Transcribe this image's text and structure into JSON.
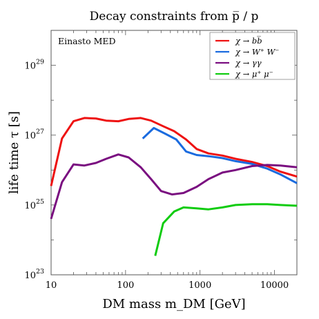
{
  "chart_data": {
    "type": "line",
    "title": "Decay constraints from p̅ / p",
    "xlabel": "DM mass m_DM [GeV]",
    "ylabel": "life time τ [s]",
    "annotation": "Einasto MED",
    "x_scale": "log",
    "y_scale": "log",
    "xlim": [
      10,
      20000
    ],
    "ylim": [
      1e+23,
      1e+30
    ],
    "x_ticks": [
      {
        "value": 10,
        "label": "10"
      },
      {
        "value": 100,
        "label": "100"
      },
      {
        "value": 1000,
        "label": "1000"
      },
      {
        "value": 10000,
        "label": "10000"
      }
    ],
    "y_ticks": [
      {
        "value": 1e+23,
        "mant": "10",
        "exp": "23"
      },
      {
        "value": 1e+25,
        "mant": "10",
        "exp": "25"
      },
      {
        "value": 1e+27,
        "mant": "10",
        "exp": "27"
      },
      {
        "value": 1e+29,
        "mant": "10",
        "exp": "29"
      }
    ],
    "grid": false,
    "legend_position": "top-right",
    "series": [
      {
        "name": "χ → bb̅",
        "color": "#ee1111",
        "points": [
          [
            10,
            3.5e+25
          ],
          [
            14,
            8e+26
          ],
          [
            20,
            2.5e+27
          ],
          [
            28,
            3.1e+27
          ],
          [
            40,
            3e+27
          ],
          [
            55,
            2.6e+27
          ],
          [
            80,
            2.5e+27
          ],
          [
            110,
            2.9e+27
          ],
          [
            160,
            3.1e+27
          ],
          [
            220,
            2.6e+27
          ],
          [
            320,
            1.8e+27
          ],
          [
            450,
            1.3e+27
          ],
          [
            650,
            7.5e+26
          ],
          [
            900,
            4e+26
          ],
          [
            1300,
            3e+26
          ],
          [
            2000,
            2.6e+26
          ],
          [
            3000,
            2.1e+26
          ],
          [
            5000,
            1.7e+26
          ],
          [
            8000,
            1.3e+26
          ],
          [
            12000,
            9e+25
          ],
          [
            20000,
            6.5e+25
          ]
        ]
      },
      {
        "name": "χ → W⁺ W⁻",
        "color": "#1a6bdf",
        "points": [
          [
            170,
            8e+26
          ],
          [
            240,
            1.6e+27
          ],
          [
            340,
            1.1e+27
          ],
          [
            480,
            7.5e+26
          ],
          [
            650,
            3.4e+26
          ],
          [
            900,
            2.7e+26
          ],
          [
            1300,
            2.5e+26
          ],
          [
            2000,
            2.2e+26
          ],
          [
            3000,
            1.8e+26
          ],
          [
            5000,
            1.5e+26
          ],
          [
            8000,
            1.1e+26
          ],
          [
            12000,
            7.5e+25
          ],
          [
            20000,
            4.2e+25
          ]
        ]
      },
      {
        "name": "χ → γγ",
        "color": "#7a0e80",
        "points": [
          [
            10,
            4e+24
          ],
          [
            14,
            4.5e+25
          ],
          [
            20,
            1.45e+26
          ],
          [
            28,
            1.35e+26
          ],
          [
            40,
            1.6e+26
          ],
          [
            55,
            2.1e+26
          ],
          [
            80,
            2.8e+26
          ],
          [
            110,
            2.3e+26
          ],
          [
            160,
            1.2e+26
          ],
          [
            220,
            5.5e+25
          ],
          [
            300,
            2.5e+25
          ],
          [
            420,
            2e+25
          ],
          [
            600,
            2.2e+25
          ],
          [
            900,
            3.3e+25
          ],
          [
            1300,
            5.5e+25
          ],
          [
            2000,
            8.5e+25
          ],
          [
            3000,
            1e+26
          ],
          [
            5000,
            1.3e+26
          ],
          [
            8000,
            1.4e+26
          ],
          [
            12000,
            1.35e+26
          ],
          [
            20000,
            1.2e+26
          ]
        ]
      },
      {
        "name": "χ → μ⁺ μ⁻",
        "color": "#11cc11",
        "points": [
          [
            250,
            3.5e+23
          ],
          [
            320,
            3e+24
          ],
          [
            450,
            6.5e+24
          ],
          [
            600,
            8.5e+24
          ],
          [
            900,
            8e+24
          ],
          [
            1300,
            7.5e+24
          ],
          [
            2000,
            8.5e+24
          ],
          [
            3000,
            1e+25
          ],
          [
            5000,
            1.05e+25
          ],
          [
            8000,
            1.05e+25
          ],
          [
            12000,
            1e+25
          ],
          [
            20000,
            9.5e+24
          ]
        ]
      }
    ]
  }
}
